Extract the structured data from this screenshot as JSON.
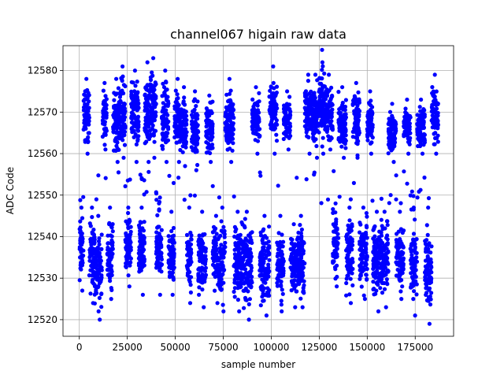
{
  "chart_data": {
    "type": "scatter",
    "title": "channel067 higain raw data",
    "xlabel": "sample number",
    "ylabel": "ADC Code",
    "xlim": [
      -8500,
      195000
    ],
    "ylim": [
      12516,
      12586
    ],
    "xticks": [
      0,
      25000,
      50000,
      75000,
      100000,
      125000,
      150000,
      175000
    ],
    "xtick_labels": [
      "0",
      "25000",
      "50000",
      "75000",
      "100000",
      "125000",
      "150000",
      "175000"
    ],
    "yticks": [
      12520,
      12530,
      12540,
      12550,
      12560,
      12570,
      12580
    ],
    "ytick_labels": [
      "12520",
      "12530",
      "12540",
      "12550",
      "12560",
      "12570",
      "12580"
    ],
    "grid": true,
    "marker_color": "#0000ff",
    "description": "Raw ADC samples alternate between two bands (~12519-12548 low, ~12556-12585 high) in bursts across ~187000 samples.",
    "segments": [
      {
        "x0": 0,
        "x1": 2200,
        "level": "low",
        "min": 12527,
        "max": 12547
      },
      {
        "x0": 2200,
        "x1": 5200,
        "level": "high",
        "min": 12560,
        "max": 12578
      },
      {
        "x0": 5200,
        "x1": 8000,
        "level": "low",
        "min": 12524,
        "max": 12547
      },
      {
        "x0": 8000,
        "x1": 11800,
        "level": "low",
        "min": 12520,
        "max": 12545
      },
      {
        "x0": 12000,
        "x1": 14300,
        "level": "high",
        "min": 12561,
        "max": 12577
      },
      {
        "x0": 14500,
        "x1": 17500,
        "level": "low",
        "min": 12525,
        "max": 12547
      },
      {
        "x0": 17500,
        "x1": 21000,
        "level": "high",
        "min": 12558,
        "max": 12578
      },
      {
        "x0": 21000,
        "x1": 24000,
        "level": "high",
        "min": 12559,
        "max": 12581
      },
      {
        "x0": 24000,
        "x1": 27000,
        "level": "low",
        "min": 12528,
        "max": 12547
      },
      {
        "x0": 27000,
        "x1": 31000,
        "level": "high",
        "min": 12558,
        "max": 12580
      },
      {
        "x0": 31000,
        "x1": 34000,
        "level": "low",
        "min": 12526,
        "max": 12547
      },
      {
        "x0": 34000,
        "x1": 37000,
        "level": "high",
        "min": 12558,
        "max": 12582
      },
      {
        "x0": 37000,
        "x1": 40000,
        "level": "high",
        "min": 12559,
        "max": 12583
      },
      {
        "x0": 40000,
        "x1": 43000,
        "level": "low",
        "min": 12526,
        "max": 12548
      },
      {
        "x0": 43000,
        "x1": 46500,
        "level": "high",
        "min": 12558,
        "max": 12580
      },
      {
        "x0": 46500,
        "x1": 49500,
        "level": "low",
        "min": 12526,
        "max": 12546
      },
      {
        "x0": 49500,
        "x1": 53000,
        "level": "high",
        "min": 12558,
        "max": 12578
      },
      {
        "x0": 53000,
        "x1": 56000,
        "level": "high",
        "min": 12557,
        "max": 12576
      },
      {
        "x0": 56000,
        "x1": 58500,
        "level": "low",
        "min": 12524,
        "max": 12547
      },
      {
        "x0": 58500,
        "x1": 62000,
        "level": "high",
        "min": 12556,
        "max": 12575
      },
      {
        "x0": 62000,
        "x1": 66000,
        "level": "low",
        "min": 12523,
        "max": 12546
      },
      {
        "x0": 66000,
        "x1": 69500,
        "level": "high",
        "min": 12558,
        "max": 12574
      },
      {
        "x0": 69500,
        "x1": 73000,
        "level": "low",
        "min": 12524,
        "max": 12545
      },
      {
        "x0": 73000,
        "x1": 76000,
        "level": "low",
        "min": 12522,
        "max": 12547
      },
      {
        "x0": 76000,
        "x1": 80500,
        "level": "high",
        "min": 12558,
        "max": 12578
      },
      {
        "x0": 80500,
        "x1": 84500,
        "level": "low",
        "min": 12522,
        "max": 12546
      },
      {
        "x0": 84500,
        "x1": 90000,
        "level": "low",
        "min": 12520,
        "max": 12546
      },
      {
        "x0": 90000,
        "x1": 94000,
        "level": "high",
        "min": 12560,
        "max": 12576
      },
      {
        "x0": 94000,
        "x1": 99000,
        "level": "low",
        "min": 12521,
        "max": 12545
      },
      {
        "x0": 99000,
        "x1": 103000,
        "level": "high",
        "min": 12560,
        "max": 12581
      },
      {
        "x0": 103000,
        "x1": 106500,
        "level": "low",
        "min": 12522,
        "max": 12545
      },
      {
        "x0": 106500,
        "x1": 110000,
        "level": "high",
        "min": 12561,
        "max": 12575
      },
      {
        "x0": 110000,
        "x1": 113500,
        "level": "low",
        "min": 12523,
        "max": 12543
      },
      {
        "x0": 113500,
        "x1": 117500,
        "level": "low",
        "min": 12523,
        "max": 12545
      },
      {
        "x0": 117500,
        "x1": 121000,
        "level": "high",
        "min": 12560,
        "max": 12579
      },
      {
        "x0": 121000,
        "x1": 125000,
        "level": "high",
        "min": 12559,
        "max": 12579
      },
      {
        "x0": 125000,
        "x1": 128000,
        "level": "high",
        "min": 12560,
        "max": 12585
      },
      {
        "x0": 128000,
        "x1": 132000,
        "level": "high",
        "min": 12561,
        "max": 12579
      },
      {
        "x0": 132000,
        "x1": 135000,
        "level": "low",
        "min": 12528,
        "max": 12548
      },
      {
        "x0": 135000,
        "x1": 139000,
        "level": "high",
        "min": 12559,
        "max": 12576
      },
      {
        "x0": 139000,
        "x1": 142500,
        "level": "low",
        "min": 12524,
        "max": 12547
      },
      {
        "x0": 142500,
        "x1": 146000,
        "level": "high",
        "min": 12559,
        "max": 12577
      },
      {
        "x0": 146000,
        "x1": 150000,
        "level": "low",
        "min": 12525,
        "max": 12547
      },
      {
        "x0": 150000,
        "x1": 153000,
        "level": "high",
        "min": 12560,
        "max": 12575
      },
      {
        "x0": 153000,
        "x1": 157000,
        "level": "low",
        "min": 12522,
        "max": 12546
      },
      {
        "x0": 157000,
        "x1": 161000,
        "level": "low",
        "min": 12523,
        "max": 12546
      },
      {
        "x0": 161000,
        "x1": 165000,
        "level": "high",
        "min": 12558,
        "max": 12572
      },
      {
        "x0": 165000,
        "x1": 169000,
        "level": "low",
        "min": 12525,
        "max": 12546
      },
      {
        "x0": 169000,
        "x1": 172500,
        "level": "high",
        "min": 12560,
        "max": 12573
      },
      {
        "x0": 172500,
        "x1": 176000,
        "level": "low",
        "min": 12521,
        "max": 12547
      },
      {
        "x0": 176000,
        "x1": 180000,
        "level": "high",
        "min": 12560,
        "max": 12573
      },
      {
        "x0": 180000,
        "x1": 183500,
        "level": "low",
        "min": 12519,
        "max": 12547
      },
      {
        "x0": 183500,
        "x1": 187000,
        "level": "high",
        "min": 12560,
        "max": 12579
      }
    ],
    "transition_points_approx": 60
  }
}
